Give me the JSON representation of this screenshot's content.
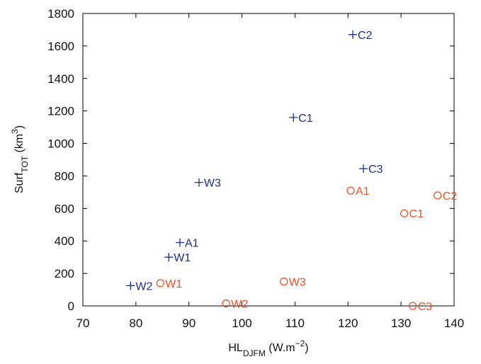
{
  "chart_data": {
    "type": "scatter",
    "x_label": [
      {
        "text": "HL"
      },
      {
        "text": "DJFM",
        "shift": "sub"
      },
      {
        "text": " (W.m"
      },
      {
        "text": "−2",
        "shift": "sup"
      },
      {
        "text": ")"
      }
    ],
    "y_label": [
      {
        "text": "Surf"
      },
      {
        "text": "TOT",
        "shift": "sub"
      },
      {
        "text": " (km"
      },
      {
        "text": "3",
        "shift": "sup"
      },
      {
        "text": ")"
      }
    ],
    "xlim": [
      70,
      140
    ],
    "xticks": [
      70,
      80,
      90,
      100,
      110,
      120,
      130,
      140
    ],
    "ylim": [
      0,
      1800
    ],
    "yticks": [
      0,
      200,
      400,
      600,
      800,
      1000,
      1200,
      1400,
      1600,
      1800
    ],
    "series": [
      {
        "color": "#1f2d8c",
        "marker": "plus",
        "x": [
          120.9,
          109.7,
          122.9,
          91.9,
          88.3,
          86.2,
          79.0
        ],
        "values": [
          1670,
          1160,
          845,
          760,
          390,
          300,
          125
        ],
        "labels": [
          "C2",
          "C1",
          "C3",
          "W3",
          "A1",
          "W1",
          "W2"
        ]
      },
      {
        "color": "#e8532a",
        "marker": "circle",
        "x": [
          120.5,
          136.9,
          130.6,
          107.9,
          84.6,
          97.0,
          132.2
        ],
        "values": [
          710,
          680,
          570,
          150,
          140,
          15,
          0
        ],
        "labels": [
          "A1",
          "C2",
          "C1",
          "W3",
          "W1",
          "W2",
          "C3"
        ]
      }
    ]
  }
}
